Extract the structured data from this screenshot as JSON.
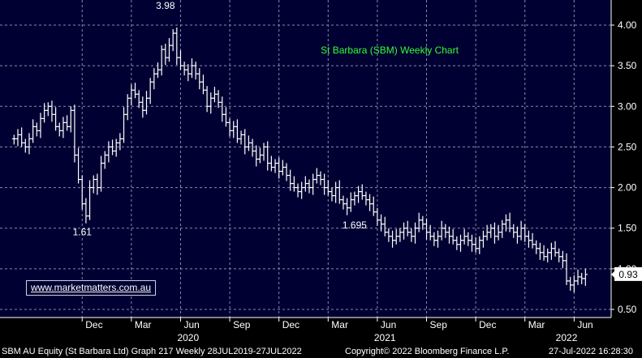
{
  "chart_data": {
    "type": "ohlc",
    "title": "St Barbara (SBM) Weekly Chart",
    "ylim": [
      0.5,
      4.1
    ],
    "y_ticks": [
      "4.00",
      "3.50",
      "3.00",
      "2.50",
      "2.00",
      "1.50",
      "1.00",
      "0.50"
    ],
    "y_tick_values": [
      4.0,
      3.5,
      3.0,
      2.5,
      2.0,
      1.5,
      1.0,
      0.5
    ],
    "x_months": [
      {
        "label": "Dec",
        "w": 20
      },
      {
        "label": "Mar",
        "w": 33
      },
      {
        "label": "Jun",
        "w": 46
      },
      {
        "label": "Sep",
        "w": 59
      },
      {
        "label": "Dec",
        "w": 72
      },
      {
        "label": "Mar",
        "w": 85
      },
      {
        "label": "Jun",
        "w": 98
      },
      {
        "label": "Sep",
        "w": 111
      },
      {
        "label": "Dec",
        "w": 124
      },
      {
        "label": "Mar",
        "w": 137
      },
      {
        "label": "Jun",
        "w": 150
      }
    ],
    "x_years": [
      {
        "label": "2020",
        "w": 48
      },
      {
        "label": "2021",
        "w": 100
      },
      {
        "label": "2022",
        "w": 148
      }
    ],
    "weeks_start": 0,
    "weeks_end": 157,
    "annotations": [
      {
        "label": "3.98",
        "w": 42,
        "v": 3.98,
        "pos": "above"
      },
      {
        "label": "1.61",
        "w": 20,
        "v": 1.61,
        "pos": "below"
      },
      {
        "label": "1.695",
        "w": 92,
        "v": 1.695,
        "pos": "below"
      }
    ],
    "last_price": {
      "label": "0.93",
      "value": 0.93
    },
    "series_close": [
      2.6,
      2.65,
      2.55,
      2.5,
      2.6,
      2.75,
      2.7,
      2.85,
      2.95,
      3.0,
      2.9,
      2.75,
      2.7,
      2.8,
      2.75,
      2.95,
      2.4,
      2.1,
      1.8,
      1.65,
      2.0,
      2.1,
      2.0,
      2.3,
      2.4,
      2.5,
      2.45,
      2.55,
      2.6,
      2.9,
      3.1,
      3.2,
      3.15,
      3.05,
      2.95,
      3.1,
      3.3,
      3.4,
      3.45,
      3.7,
      3.6,
      3.75,
      3.9,
      3.6,
      3.5,
      3.45,
      3.4,
      3.5,
      3.4,
      3.3,
      3.2,
      3.0,
      3.1,
      3.15,
      3.05,
      2.9,
      2.8,
      2.7,
      2.75,
      2.6,
      2.65,
      2.5,
      2.55,
      2.45,
      2.35,
      2.4,
      2.5,
      2.3,
      2.25,
      2.3,
      2.2,
      2.25,
      2.15,
      2.05,
      2.0,
      1.95,
      2.0,
      2.05,
      2.0,
      2.1,
      2.15,
      2.1,
      2.0,
      1.95,
      1.9,
      2.0,
      1.85,
      1.8,
      1.75,
      1.85,
      1.9,
      1.95,
      1.9,
      1.85,
      1.8,
      1.7,
      1.6,
      1.55,
      1.45,
      1.4,
      1.35,
      1.4,
      1.45,
      1.5,
      1.45,
      1.4,
      1.5,
      1.6,
      1.55,
      1.45,
      1.4,
      1.35,
      1.4,
      1.5,
      1.45,
      1.4,
      1.35,
      1.3,
      1.35,
      1.4,
      1.35,
      1.3,
      1.25,
      1.35,
      1.4,
      1.45,
      1.5,
      1.4,
      1.45,
      1.55,
      1.6,
      1.5,
      1.45,
      1.4,
      1.5,
      1.4,
      1.35,
      1.3,
      1.25,
      1.2,
      1.15,
      1.2,
      1.25,
      1.2,
      1.15,
      1.1,
      0.85,
      0.8,
      0.85,
      0.9,
      0.88,
      0.93
    ]
  },
  "footer": {
    "left": "SBM AU Equity (St Barbara Ltd) Graph 217  Weekly 28JUL2019-27JUL2022",
    "middle": "Copyright© 2022 Bloomberg Finance L.P.",
    "right": "27-Jul-2022 16:28:30"
  },
  "watermark": "www.marketmatters.com.au",
  "colors": {
    "background": "#000033",
    "bars": "#ffffff",
    "title": "#33ff33",
    "grid": "#8a8aa8",
    "axis": "#ffffff"
  }
}
